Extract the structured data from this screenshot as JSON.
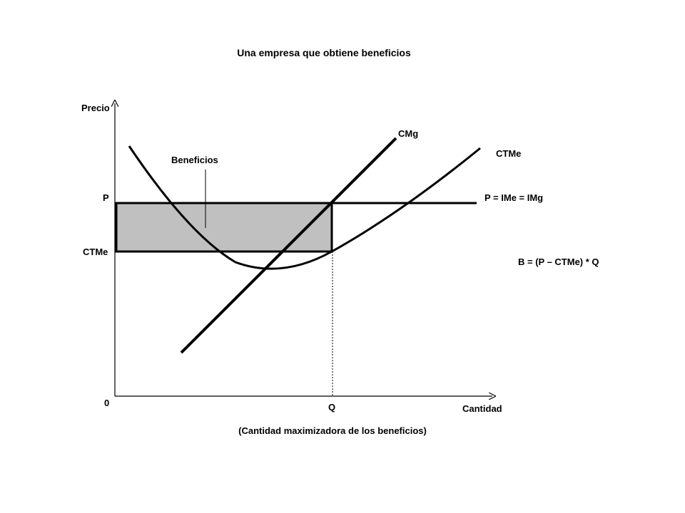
{
  "title": "Una empresa que obtiene beneficios",
  "axes": {
    "y_label": "Precio",
    "x_label": "Cantidad",
    "origin": "0"
  },
  "labels": {
    "p_axis": "P",
    "ctme_axis": "CTMe",
    "q_axis": "Q",
    "q_caption": "(Cantidad maximizadora de los beneficios)",
    "cmg_curve": "CMg",
    "ctme_curve": "CTMe",
    "price_line": "P = IMe = IMg",
    "beneficios": "Beneficios",
    "formula": "B = (P – CTMe) * Q"
  },
  "colors": {
    "lines": "#000000",
    "profit_area": "#c0c0c0"
  }
}
